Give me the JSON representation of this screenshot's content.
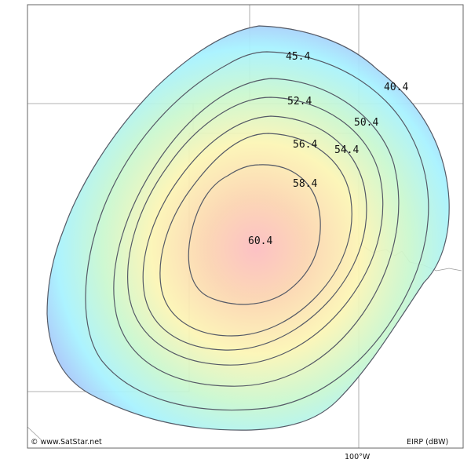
{
  "map": {
    "credit": "© www.SatStar.net",
    "legend_label": "EIRP (dBW)",
    "longitude_label": "100°W"
  },
  "contours": [
    {
      "value": 40.4,
      "label": "40.4"
    },
    {
      "value": 45.4,
      "label": "45.4"
    },
    {
      "value": 50.4,
      "label": "50.4"
    },
    {
      "value": 52.4,
      "label": "52.4"
    },
    {
      "value": 54.4,
      "label": "54.4"
    },
    {
      "value": 56.4,
      "label": "56.4"
    },
    {
      "value": 58.4,
      "label": "58.4"
    },
    {
      "value": 60.4,
      "label": "60.4"
    }
  ],
  "colors": {
    "outer": "#a8a8f5",
    "cyan": "#a6f2ff",
    "green": "#c9f7cf",
    "yellow": "#fcf5b4",
    "orange": "#fbd4b0",
    "center": "#fcbcc0",
    "contour_line": "#555a66",
    "border_line": "#9a9a9a",
    "frame": "#666666"
  }
}
